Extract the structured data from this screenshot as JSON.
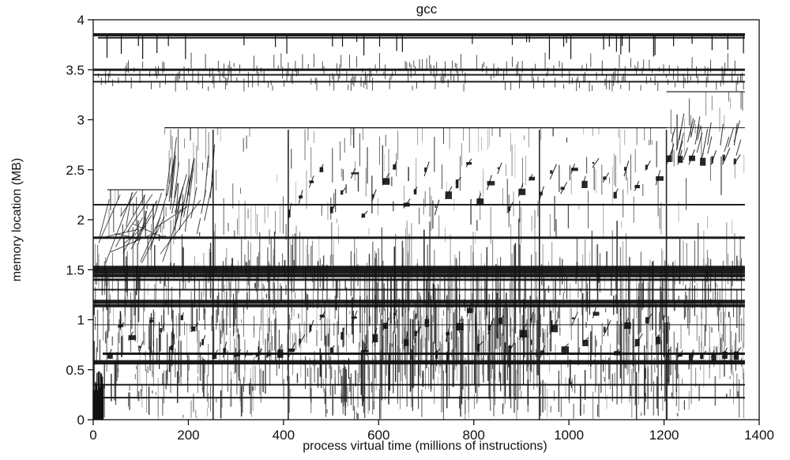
{
  "chart_data": {
    "type": "scatter",
    "title": "gcc",
    "xlabel": "process virtual time (millions of instructions)",
    "ylabel": "memory location (MB)",
    "xlim": [
      0,
      1400
    ],
    "ylim": [
      0,
      4
    ],
    "x_ticks": [
      0,
      200,
      400,
      600,
      800,
      1000,
      1200,
      1400
    ],
    "y_ticks": [
      0,
      0.5,
      1,
      1.5,
      2,
      2.5,
      3,
      3.5,
      4
    ],
    "x_tick_labels": [
      "0",
      "200",
      "400",
      "600",
      "800",
      "1000",
      "1200",
      "1400"
    ],
    "y_tick_labels": [
      "0",
      "0.5",
      "1",
      "1.5",
      "2",
      "2.5",
      "3",
      "3.5",
      "4"
    ],
    "data_extent_x": [
      0,
      1370
    ],
    "grid": false,
    "legend": "none",
    "ink_color": "#111111",
    "horizontal_bands": [
      {
        "y": 3.85,
        "x0": 0,
        "x1": 1370,
        "weight": 4
      },
      {
        "y": 3.82,
        "x0": 10,
        "x1": 1370,
        "weight": 2
      },
      {
        "y": 3.5,
        "x0": 0,
        "x1": 1370,
        "weight": 3
      },
      {
        "y": 3.45,
        "x0": 0,
        "x1": 1370,
        "weight": 2
      },
      {
        "y": 3.38,
        "x0": 0,
        "x1": 1370,
        "weight": 2
      },
      {
        "y": 2.92,
        "x0": 250,
        "x1": 1370,
        "weight": 1
      },
      {
        "y": 2.15,
        "x0": 0,
        "x1": 1370,
        "weight": 2
      },
      {
        "y": 1.82,
        "x0": 0,
        "x1": 1370,
        "weight": 3
      },
      {
        "y": 1.52,
        "x0": 0,
        "x1": 1370,
        "weight": 5
      },
      {
        "y": 1.48,
        "x0": 0,
        "x1": 1370,
        "weight": 6
      },
      {
        "y": 1.44,
        "x0": 0,
        "x1": 1370,
        "weight": 4
      },
      {
        "y": 1.4,
        "x0": 0,
        "x1": 1370,
        "weight": 3
      },
      {
        "y": 1.3,
        "x0": 0,
        "x1": 1370,
        "weight": 2
      },
      {
        "y": 1.18,
        "x0": 0,
        "x1": 1370,
        "weight": 5
      },
      {
        "y": 1.14,
        "x0": 0,
        "x1": 1370,
        "weight": 4
      },
      {
        "y": 0.95,
        "x0": 0,
        "x1": 1370,
        "weight": 1
      },
      {
        "y": 0.66,
        "x0": 20,
        "x1": 1370,
        "weight": 3
      },
      {
        "y": 0.58,
        "x0": 0,
        "x1": 1370,
        "weight": 4
      },
      {
        "y": 0.56,
        "x0": 0,
        "x1": 1370,
        "weight": 2
      },
      {
        "y": 0.35,
        "x0": 0,
        "x1": 1370,
        "weight": 2
      },
      {
        "y": 0.22,
        "x0": 0,
        "x1": 1370,
        "weight": 2
      }
    ],
    "phase_boundaries_x": [
      252,
      410,
      938,
      1205
    ],
    "phase_tops_mb": [
      {
        "x0": 30,
        "x1": 150,
        "top": 2.3
      },
      {
        "x0": 150,
        "x1": 252,
        "top": 2.92
      },
      {
        "x0": 252,
        "x1": 410,
        "top": 2.92
      },
      {
        "x0": 410,
        "x1": 938,
        "top": 2.92
      },
      {
        "x0": 938,
        "x1": 1205,
        "top": 2.92
      },
      {
        "x0": 1205,
        "x1": 1370,
        "top": 3.28
      }
    ],
    "staircase_segments": [
      {
        "x0": 30,
        "x1": 250,
        "y0": 0.62,
        "y1": 1.05
      },
      {
        "x0": 250,
        "x1": 410,
        "y0": 0.62,
        "y1": 1.05
      },
      {
        "x0": 410,
        "x1": 940,
        "y0": 0.62,
        "y1": 1.05
      },
      {
        "x0": 940,
        "x1": 1205,
        "y0": 0.62,
        "y1": 1.05
      },
      {
        "x0": 1205,
        "x1": 1370,
        "y0": 0.62,
        "y1": 1.05
      },
      {
        "x0": 410,
        "x1": 938,
        "y0": 2.0,
        "y1": 2.55
      },
      {
        "x0": 938,
        "x1": 1205,
        "y0": 2.2,
        "y1": 2.55
      },
      {
        "x0": 1205,
        "x1": 1370,
        "y0": 2.55,
        "y1": 3.25
      }
    ]
  }
}
